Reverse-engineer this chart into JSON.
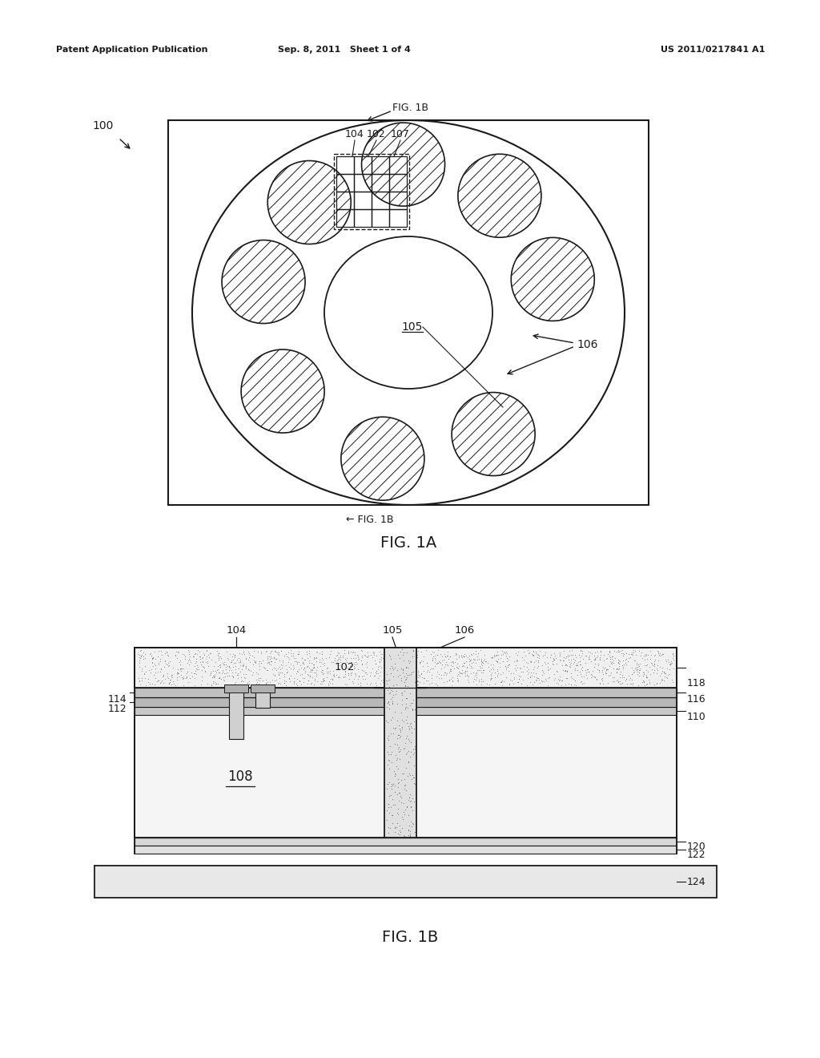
{
  "bg_color": "#ffffff",
  "line_color": "#1a1a1a",
  "header_left": "Patent Application Publication",
  "header_mid": "Sep. 8, 2011   Sheet 1 of 4",
  "header_right": "US 2011/0217841 A1",
  "fig1a_label": "FIG. 1A",
  "fig1b_label": "FIG. 1B",
  "label_100": "100",
  "label_102": "102",
  "label_104": "104",
  "label_105": "105",
  "label_106": "106",
  "label_107": "107",
  "label_108": "108",
  "label_110": "110",
  "label_112": "112",
  "label_114": "114",
  "label_116": "116",
  "label_118": "118",
  "label_120": "120",
  "label_122": "122",
  "label_124": "124"
}
